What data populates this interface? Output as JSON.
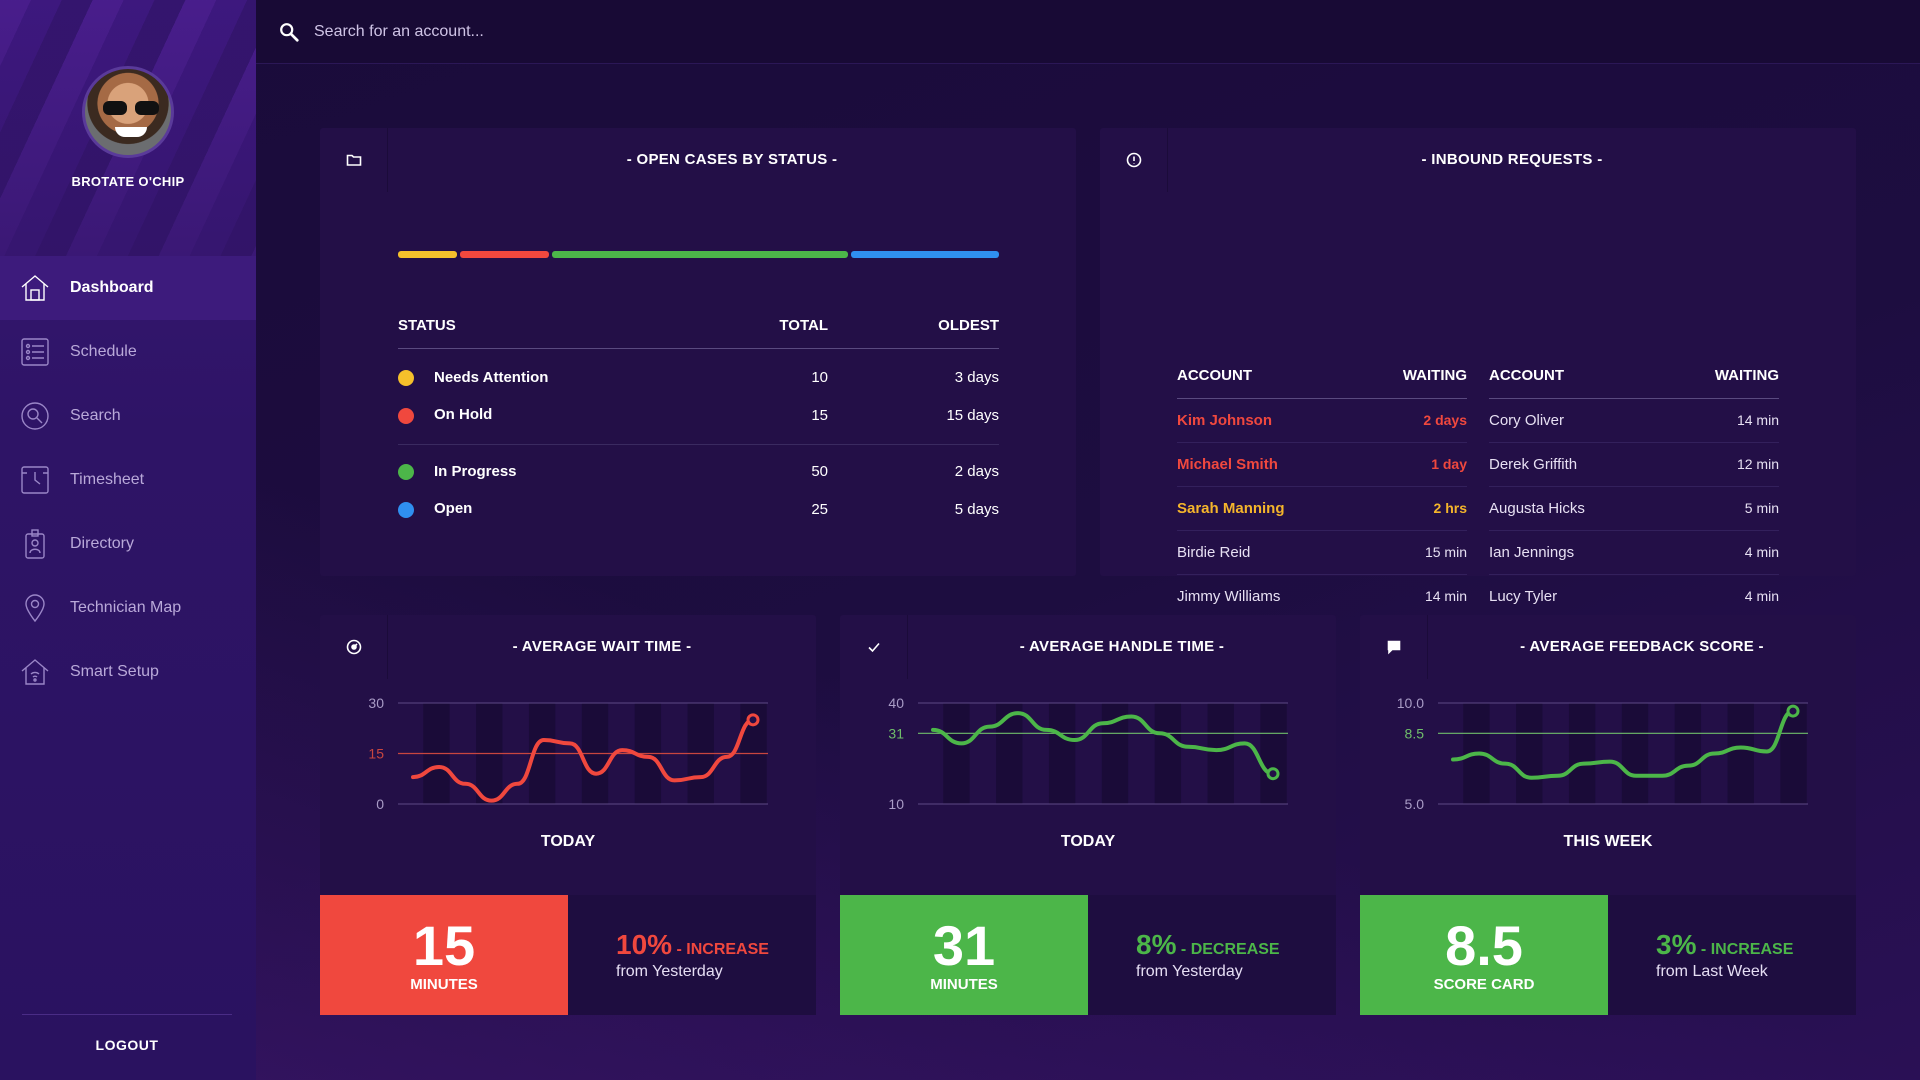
{
  "user": {
    "name": "BROTATE O'CHIP"
  },
  "nav": [
    {
      "label": "Dashboard",
      "icon": "home-icon",
      "active": true
    },
    {
      "label": "Schedule",
      "icon": "list-icon"
    },
    {
      "label": "Search",
      "icon": "search-icon"
    },
    {
      "label": "Timesheet",
      "icon": "clock-icon"
    },
    {
      "label": "Directory",
      "icon": "badge-icon"
    },
    {
      "label": "Technician Map",
      "icon": "map-pin-icon"
    },
    {
      "label": "Smart Setup",
      "icon": "smart-home-icon"
    }
  ],
  "logout": "LOGOUT",
  "search": {
    "placeholder": "Search for an account..."
  },
  "colors": {
    "yellow": "#f5c02b",
    "red": "#f0483e",
    "green": "#4cb649",
    "blue": "#2f8ff0"
  },
  "open_cases": {
    "title": "- OPEN CASES BY STATUS -",
    "headers": {
      "status": "STATUS",
      "total": "TOTAL",
      "oldest": "OLDEST"
    },
    "rows": [
      {
        "status": "Needs Attention",
        "total": "10",
        "oldest": "3 days",
        "color": "#f5c02b"
      },
      {
        "status": "On Hold",
        "total": "15",
        "oldest": "15 days",
        "color": "#f0483e"
      },
      {
        "status": "In Progress",
        "total": "50",
        "oldest": "2 days",
        "color": "#4cb649"
      },
      {
        "status": "Open",
        "total": "25",
        "oldest": "5 days",
        "color": "#2f8ff0"
      }
    ]
  },
  "inbound": {
    "title": "- INBOUND REQUESTS -",
    "headers": {
      "account": "ACCOUNT",
      "waiting": "WAITING"
    },
    "left": [
      {
        "account": "Kim Johnson",
        "waiting": "2 days",
        "level": "hot"
      },
      {
        "account": "Michael Smith",
        "waiting": "1 day",
        "level": "hot"
      },
      {
        "account": "Sarah Manning",
        "waiting": "2 hrs",
        "level": "warn"
      },
      {
        "account": "Birdie Reid",
        "waiting": "15 min",
        "level": ""
      },
      {
        "account": "Jimmy Williams",
        "waiting": "14 min",
        "level": ""
      }
    ],
    "right": [
      {
        "account": "Cory Oliver",
        "waiting": "14 min"
      },
      {
        "account": "Derek Griffith",
        "waiting": "12 min"
      },
      {
        "account": "Augusta Hicks",
        "waiting": "5 min"
      },
      {
        "account": "Ian Jennings",
        "waiting": "4 min"
      },
      {
        "account": "Lucy Tyler",
        "waiting": "4 min"
      }
    ]
  },
  "metrics": [
    {
      "title": "- AVERAGE WAIT TIME -",
      "period": "TODAY",
      "value": "15",
      "unit": "MINUTES",
      "delta": "10%",
      "delta_word": "- INCREASE",
      "delta_sub": "from Yesterday",
      "color": "#f0483e",
      "icon": "gauge-icon"
    },
    {
      "title": "- AVERAGE HANDLE TIME -",
      "period": "TODAY",
      "value": "31",
      "unit": "MINUTES",
      "delta": "8%",
      "delta_word": "- DECREASE",
      "delta_sub": "from Yesterday",
      "color": "#4cb649",
      "icon": "check-icon"
    },
    {
      "title": "- AVERAGE FEEDBACK SCORE -",
      "period": "THIS WEEK",
      "value": "8.5",
      "unit": "SCORE CARD",
      "delta": "3%",
      "delta_word": "- INCREASE",
      "delta_sub": "from Last Week",
      "color": "#4cb649",
      "icon": "chat-icon"
    }
  ],
  "chart_data": [
    {
      "type": "line",
      "title": "- AVERAGE WAIT TIME -",
      "xlabel": "TODAY",
      "yticks": [
        "30",
        "15",
        "0"
      ],
      "ylim": [
        0,
        30
      ],
      "reference": 15,
      "values": [
        8,
        11,
        6,
        1,
        6,
        19,
        18,
        9,
        16,
        14,
        7,
        8,
        14,
        25
      ],
      "color": "#f0483e"
    },
    {
      "type": "line",
      "title": "- AVERAGE HANDLE TIME -",
      "xlabel": "TODAY",
      "yticks": [
        "40",
        "31",
        "10"
      ],
      "ylim": [
        10,
        40
      ],
      "reference": 31,
      "values": [
        32,
        28,
        33,
        37,
        32,
        29,
        34,
        36,
        31,
        27,
        26,
        28,
        19
      ],
      "color": "#4cb649"
    },
    {
      "type": "line",
      "title": "- AVERAGE FEEDBACK SCORE -",
      "xlabel": "THIS WEEK",
      "yticks": [
        "10.0",
        "8.5",
        "5.0"
      ],
      "ylim": [
        5,
        10
      ],
      "reference": 8.5,
      "values": [
        7.2,
        7.5,
        7.0,
        6.3,
        6.4,
        7.0,
        7.1,
        6.4,
        6.4,
        6.9,
        7.5,
        7.8,
        7.6,
        9.6
      ],
      "color": "#4cb649"
    }
  ]
}
